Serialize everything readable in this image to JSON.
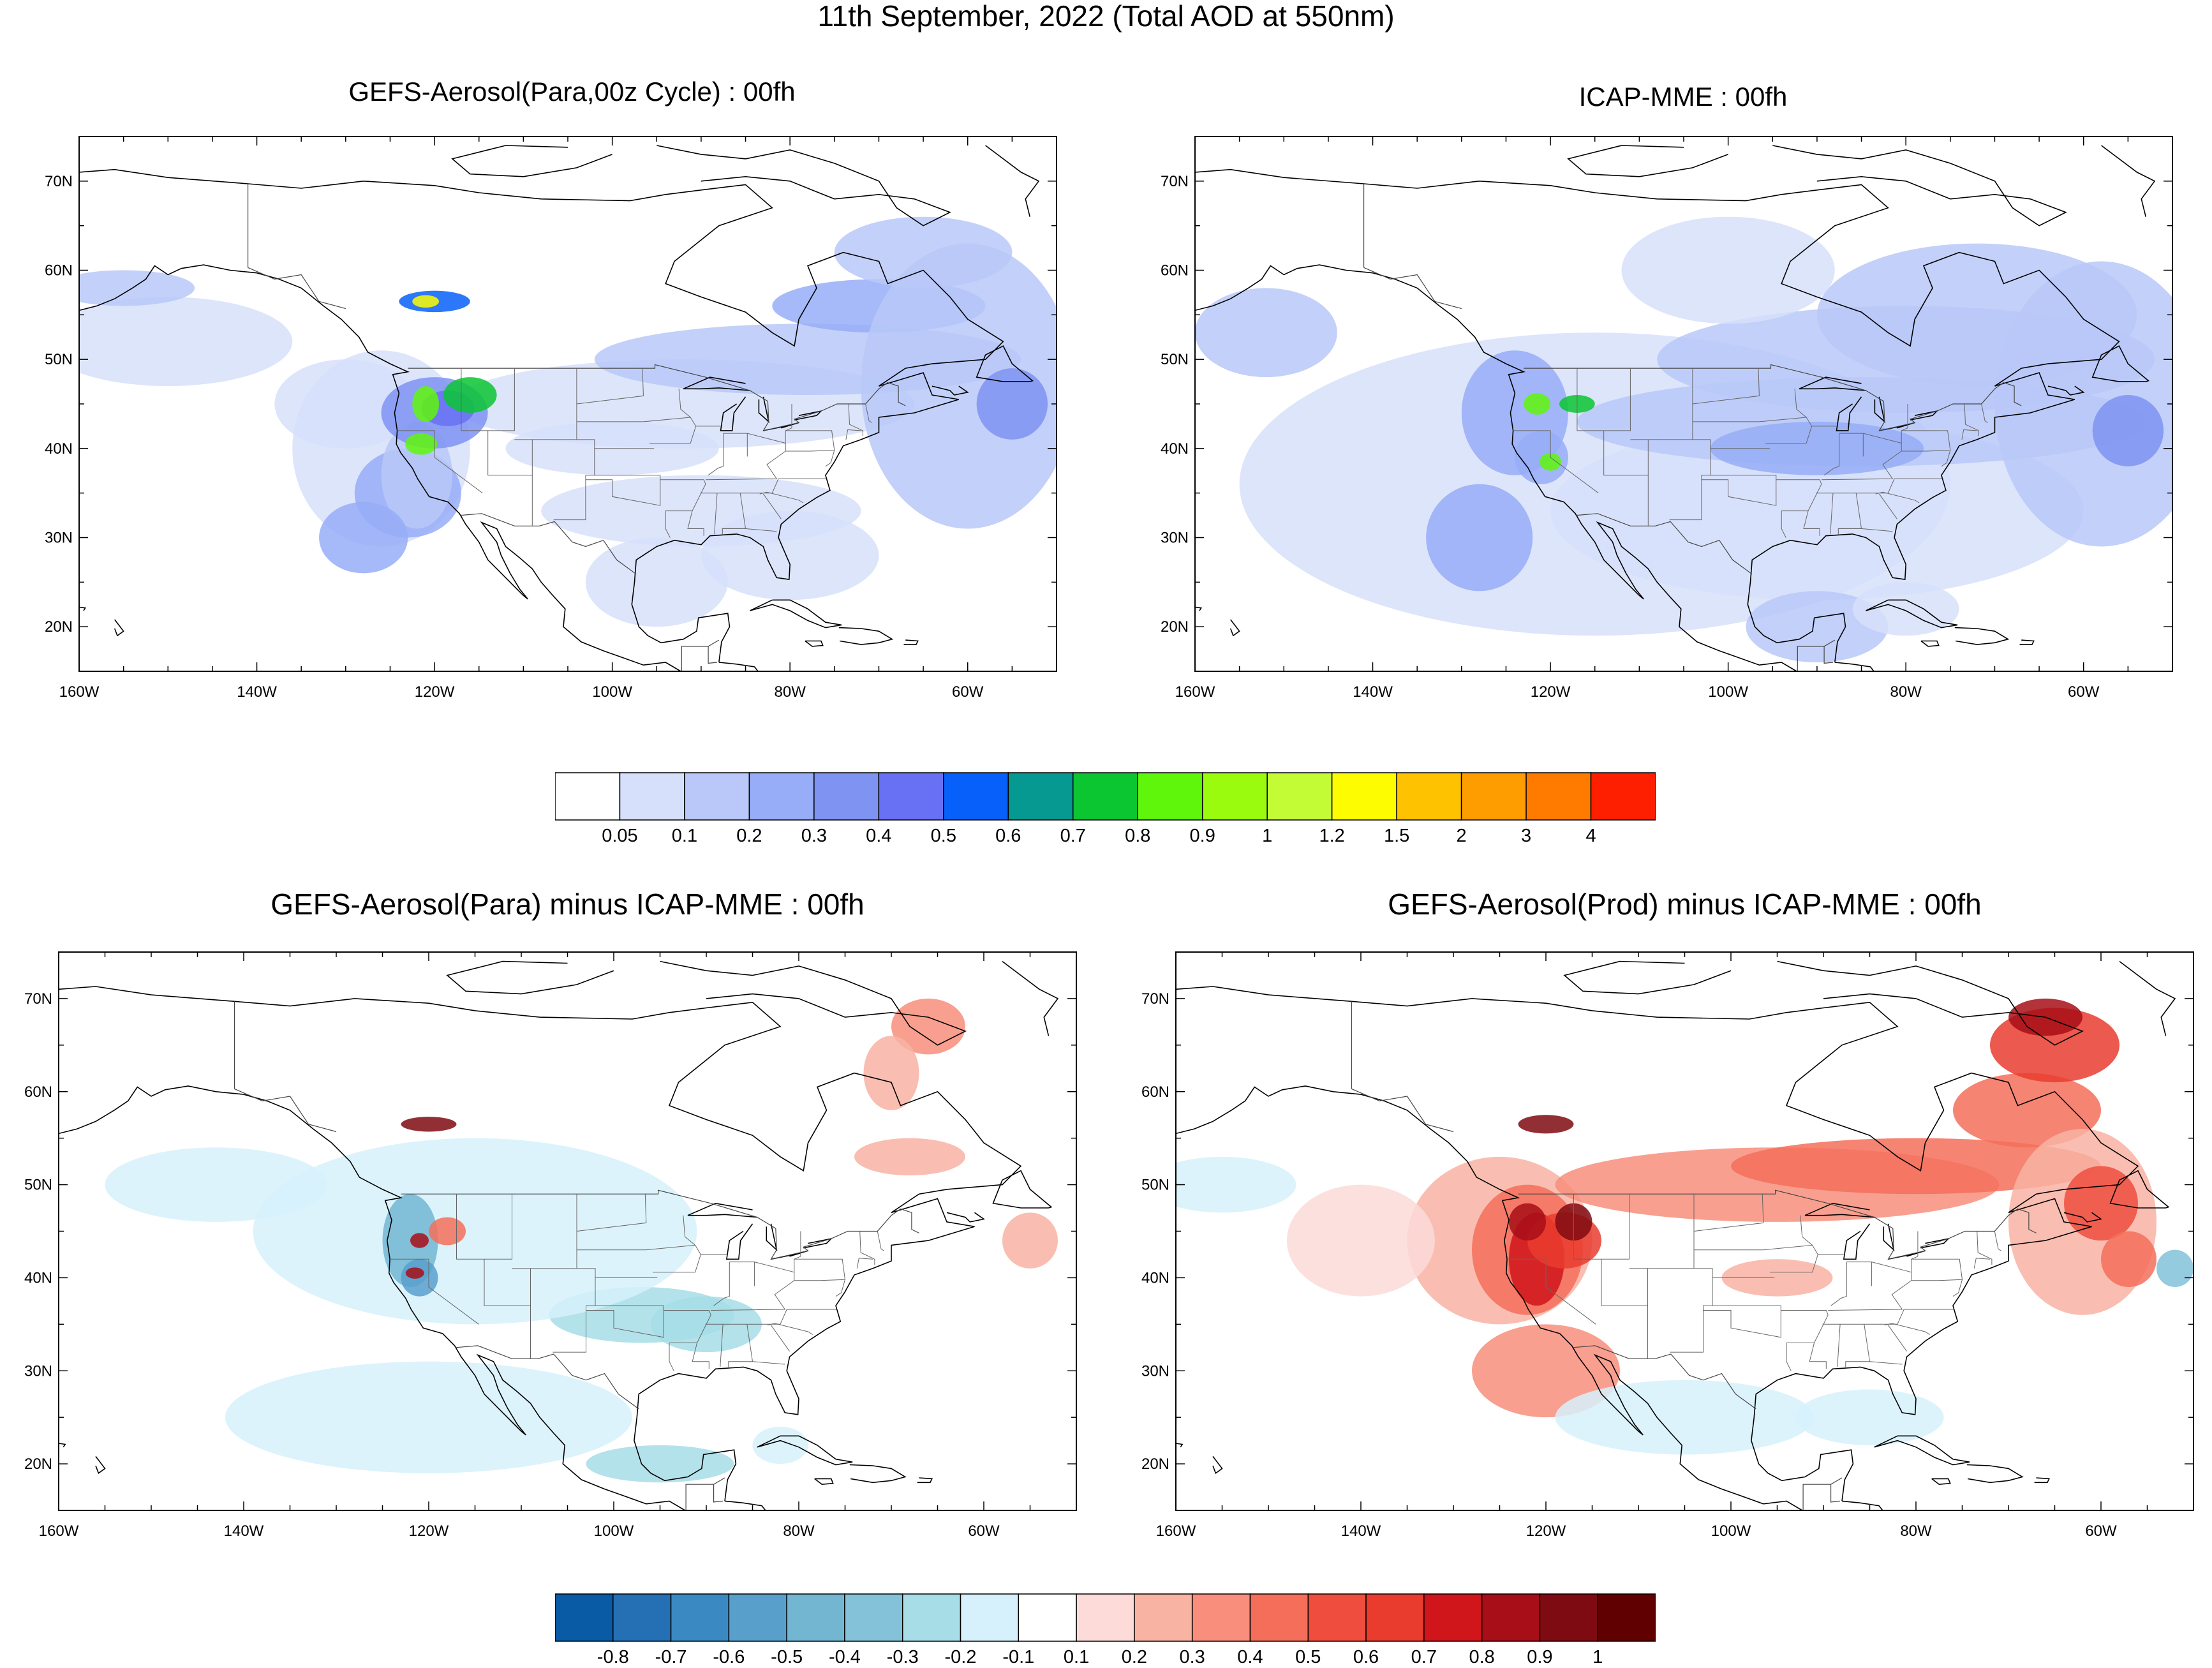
{
  "main_title": "11th September, 2022 (Total AOD at 550nm)",
  "panels": [
    {
      "id": "p1",
      "title": "GEFS-Aerosol(Para,00z Cycle) : 00fh",
      "kind": "aod"
    },
    {
      "id": "p2",
      "title": "ICAP-MME : 00fh",
      "kind": "aod"
    },
    {
      "id": "p3",
      "title": "GEFS-Aerosol(Para) minus ICAP-MME : 00fh",
      "kind": "diff"
    },
    {
      "id": "p4",
      "title": "GEFS-Aerosol(Prod) minus ICAP-MME : 00fh",
      "kind": "diff"
    }
  ],
  "map_extent": {
    "lon": [
      -160,
      -50
    ],
    "lat": [
      15,
      75
    ]
  },
  "lat_labels": [
    {
      "lat": 70,
      "label": "70N"
    },
    {
      "lat": 60,
      "label": "60N"
    },
    {
      "lat": 50,
      "label": "50N"
    },
    {
      "lat": 40,
      "label": "40N"
    },
    {
      "lat": 30,
      "label": "30N"
    },
    {
      "lat": 20,
      "label": "20N"
    }
  ],
  "lon_labels": [
    {
      "lon": -160,
      "label": "160W"
    },
    {
      "lon": -140,
      "label": "140W"
    },
    {
      "lon": -120,
      "label": "120W"
    },
    {
      "lon": -100,
      "label": "100W"
    },
    {
      "lon": -80,
      "label": "80W"
    },
    {
      "lon": -60,
      "label": "60W"
    }
  ],
  "aod_colorbar": {
    "colors": [
      "#ffffff",
      "#d7e0fa",
      "#b9c8f8",
      "#97adf7",
      "#7f93f2",
      "#6871f3",
      "#0760f9",
      "#069991",
      "#0bc531",
      "#5ff60b",
      "#9afb0f",
      "#c3fc34",
      "#fefc00",
      "#fec200",
      "#fe9d00",
      "#fe7b00",
      "#fe1e00"
    ],
    "labels": [
      "0.05",
      "0.1",
      "0.2",
      "0.3",
      "0.4",
      "0.5",
      "0.6",
      "0.7",
      "0.8",
      "0.9",
      "1",
      "1.2",
      "1.5",
      "2",
      "3",
      "4"
    ]
  },
  "diff_colorbar": {
    "colors": [
      "#095ba5",
      "#256fb4",
      "#3b89c3",
      "#599fcc",
      "#72b6d2",
      "#83c2d8",
      "#a6dde6",
      "#d6f1fb",
      "#ffffff",
      "#fcdbd8",
      "#f8b3a3",
      "#f88e7b",
      "#f56e5a",
      "#ef4e3f",
      "#e93c2f",
      "#d0151b",
      "#a70e18",
      "#7f0b12",
      "#600000"
    ],
    "labels": [
      "-0.8",
      "-0.7",
      "-0.6",
      "-0.5",
      "-0.4",
      "-0.3",
      "-0.2",
      "-0.1",
      "0.1",
      "0.2",
      "0.3",
      "0.4",
      "0.5",
      "0.6",
      "0.7",
      "0.8",
      "0.9",
      "1"
    ]
  }
}
